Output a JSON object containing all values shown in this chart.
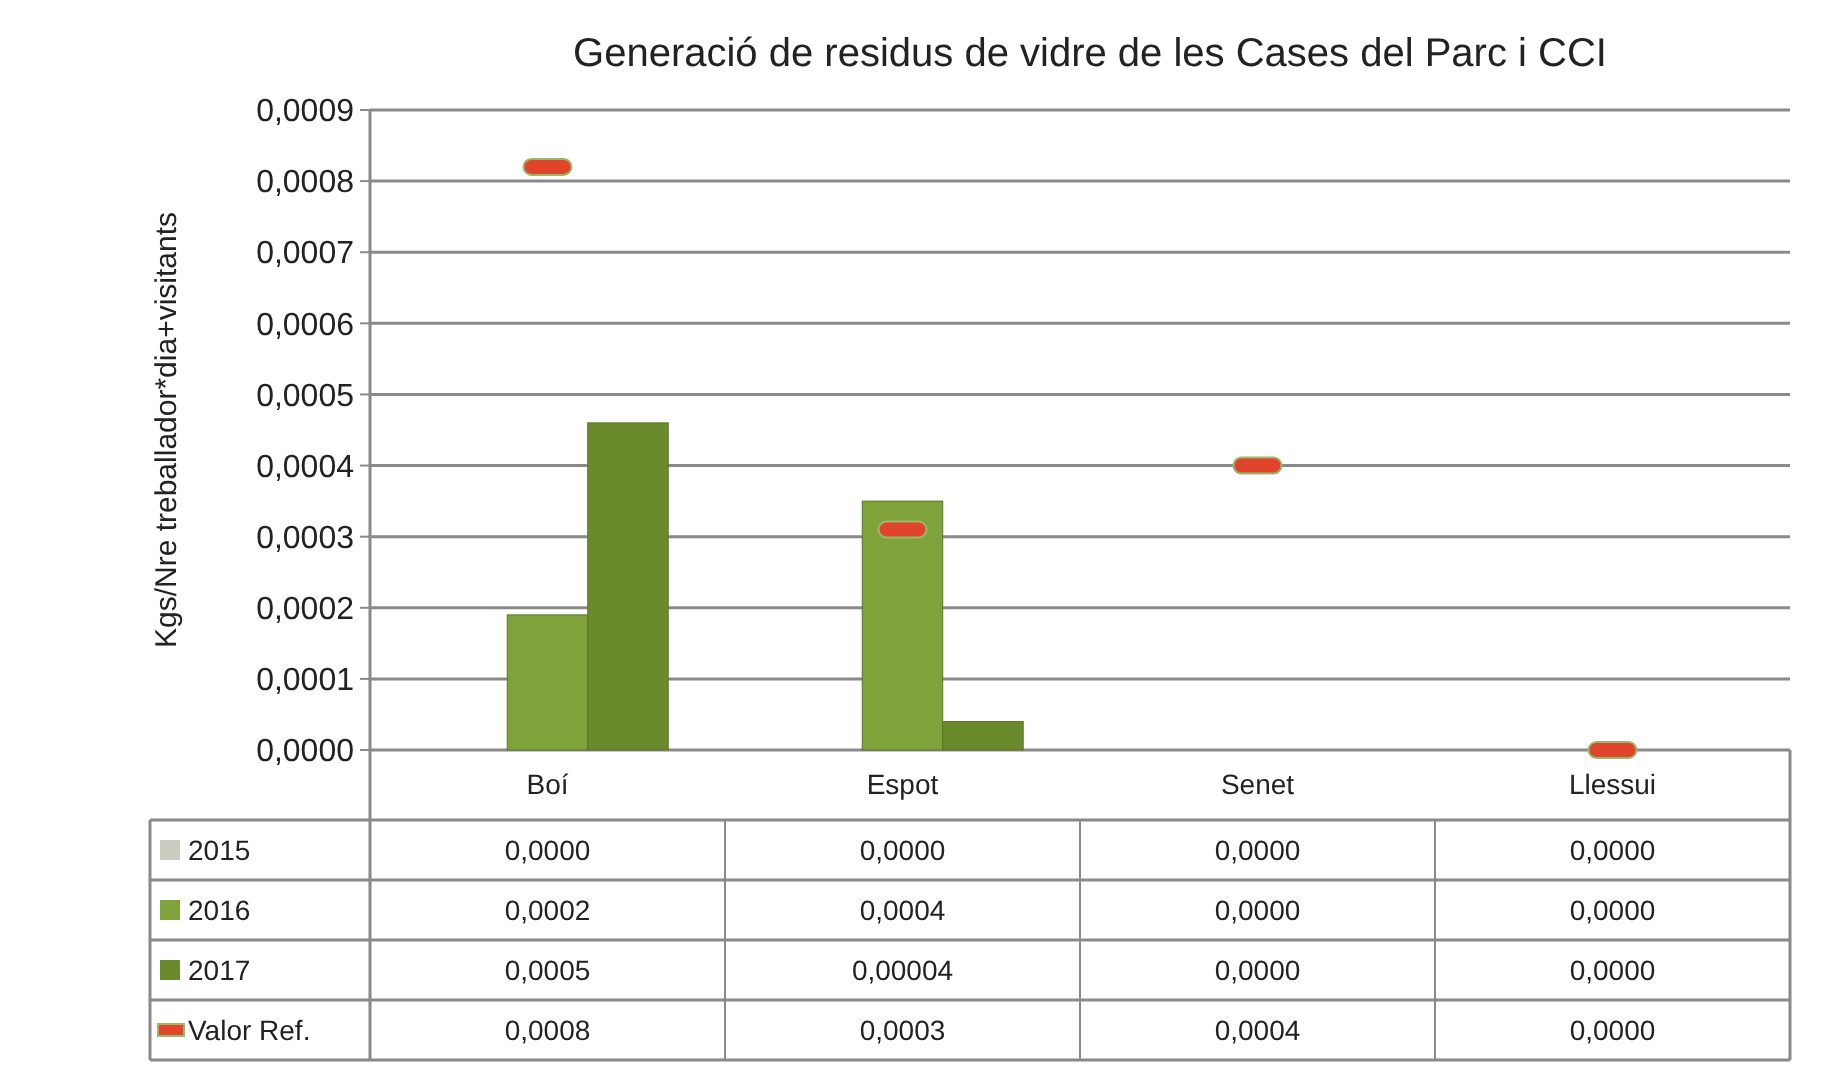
{
  "chart_data": {
    "type": "bar",
    "title": "Generació de residus de vidre de les Cases del Parc i CCI",
    "ylabel": "Kgs/Nre treballador*dia+visitants",
    "categories": [
      "Boí",
      "Espot",
      "Senet",
      "Llessui"
    ],
    "series": [
      {
        "name": "2015",
        "color": "#c9cfc0",
        "values": [
          0,
          0,
          0,
          0
        ],
        "value_labels": [
          "0,0000",
          "0,0000",
          "0,0000",
          "0,0000"
        ]
      },
      {
        "name": "2016",
        "color": "#7fa33a",
        "values": [
          0.00019,
          0.00035,
          0,
          0
        ],
        "value_labels": [
          "0,0002",
          "0,0004",
          "0,0000",
          "0,0000"
        ]
      },
      {
        "name": "2017",
        "color": "#6b8a2c",
        "values": [
          0.00046,
          4e-05,
          0,
          0
        ],
        "value_labels": [
          "0,0005",
          "0,00004",
          "0,0000",
          "0,0000"
        ]
      },
      {
        "name": "Valor Ref.",
        "type": "scatter",
        "color": "#e0442a",
        "values": [
          0.00082,
          0.00031,
          0.0004,
          0
        ],
        "value_labels": [
          "0,0008",
          "0,0003",
          "0,0004",
          "0,0000"
        ]
      }
    ],
    "ylim": [
      0,
      0.0009
    ],
    "yticks": [
      {
        "value": 0,
        "label": "0,0000"
      },
      {
        "value": 0.0001,
        "label": "0,0001"
      },
      {
        "value": 0.0002,
        "label": "0,0002"
      },
      {
        "value": 0.0003,
        "label": "0,0003"
      },
      {
        "value": 0.0004,
        "label": "0,0004"
      },
      {
        "value": 0.0005,
        "label": "0,0005"
      },
      {
        "value": 0.0006,
        "label": "0,0006"
      },
      {
        "value": 0.0007,
        "label": "0,0007"
      },
      {
        "value": 0.0008,
        "label": "0,0008"
      },
      {
        "value": 0.0009,
        "label": "0,0009"
      }
    ],
    "grid": "y",
    "legend": "bottom"
  }
}
